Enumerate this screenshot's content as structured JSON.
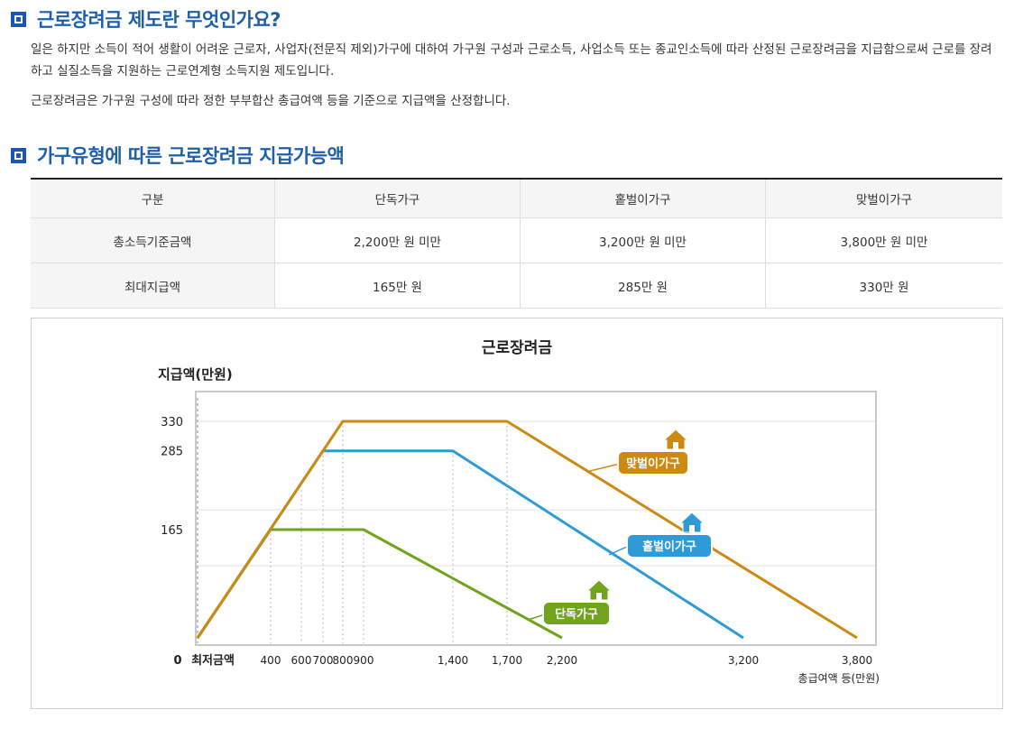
{
  "section1": {
    "title": "근로장려금 제도란 무엇인가요?",
    "para1": "일은 하지만 소득이 적어 생활이 어려운 근로자, 사업자(전문직 제외)가구에 대하여 가구원 구성과 근로소득, 사업소득 또는 종교인소득에 따라 산정된 근로장려금을 지급함으로써 근로를 장려하고 실질소득을 지원하는 근로연계형 소득지원 제도입니다.",
    "para2": "근로장려금은 가구원 구성에 따라 정한 부부합산 총급여액 등을 기준으로 지급액을 산정합니다."
  },
  "section2": {
    "title": "가구유형에 따른 근로장려금 지급가능액"
  },
  "table": {
    "headers": [
      "구분",
      "단독가구",
      "홑벌이가구",
      "맞벌이가구"
    ],
    "rows": [
      [
        "총소득기준금액",
        "2,200만 원 미만",
        "3,200만 원 미만",
        "3,800만 원 미만"
      ],
      [
        "최대지급액",
        "165만 원",
        "285만 원",
        "330만 원"
      ]
    ]
  },
  "chart_data": {
    "type": "line",
    "title": "근로장려금",
    "ylabel": "지급액(만원)",
    "xlabel": "총급여액 등(만원)",
    "x_ticks": [
      "400",
      "600",
      "700",
      "800",
      "900",
      "1,400",
      "1,700",
      "2,200",
      "3,200",
      "3,800"
    ],
    "y_ticks": [
      "330",
      "285",
      "165"
    ],
    "origin_label": "0",
    "min_label": "최저금액",
    "series": [
      {
        "name": "단독가구",
        "color": "#6fa41c",
        "points": [
          [
            0,
            0
          ],
          [
            400,
            165
          ],
          [
            900,
            165
          ],
          [
            2200,
            0
          ]
        ]
      },
      {
        "name": "홑벌이가구",
        "color": "#2e9bd6",
        "points": [
          [
            0,
            0
          ],
          [
            700,
            285
          ],
          [
            1400,
            285
          ],
          [
            3200,
            0
          ]
        ]
      },
      {
        "name": "맞벌이가구",
        "color": "#cc8a10",
        "points": [
          [
            0,
            0
          ],
          [
            800,
            330
          ],
          [
            1700,
            330
          ],
          [
            3800,
            0
          ]
        ]
      }
    ],
    "legend_icons": "house-icon",
    "grid": true
  }
}
